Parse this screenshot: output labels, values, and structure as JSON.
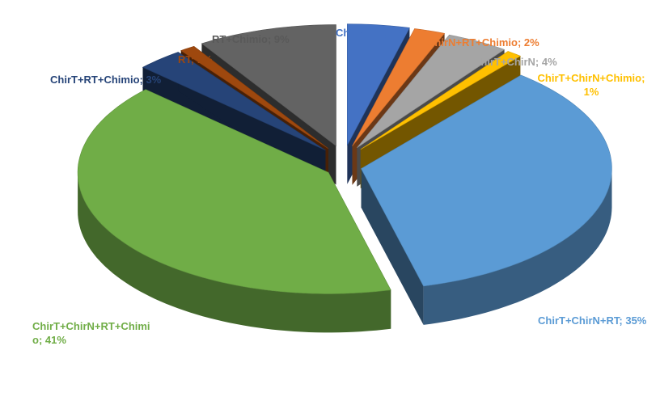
{
  "chart_data": {
    "type": "pie",
    "labels": [
      "ChirN+RT; 4%",
      "ChirN+RT+Chimio; 2%",
      "ChirT+ChirN; 4%",
      "ChirT+ChirN+Chimio; 1%",
      "ChirT+ChirN+RT; 35%",
      "ChirT+ChirN+RT+Chimio; 41%",
      "ChirT+RT+Chimio; 3%",
      "RT; 1%",
      "RT+Chimio; 9%"
    ],
    "values": [
      4,
      2,
      4,
      1,
      35,
      41,
      3,
      1,
      9
    ],
    "colors": [
      "#4472c4",
      "#ed7d31",
      "#a5a5a5",
      "#ffc000",
      "#5b9bd5",
      "#70ad47",
      "#264478",
      "#9e480e",
      "#636363"
    ]
  }
}
